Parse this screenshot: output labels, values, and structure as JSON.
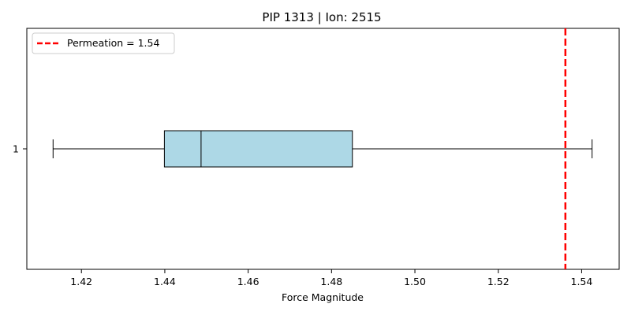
{
  "chart_data": {
    "type": "boxplot",
    "orientation": "horizontal",
    "title": "PIP 1313 | Ion: 2515",
    "xlabel": "Force Magnitude",
    "ylabel": "",
    "xlim": [
      1.4069,
      1.549
    ],
    "x_ticks": [
      1.42,
      1.44,
      1.46,
      1.48,
      1.5,
      1.52,
      1.54
    ],
    "x_tick_labels": [
      "1.42",
      "1.44",
      "1.46",
      "1.48",
      "1.50",
      "1.52",
      "1.54"
    ],
    "y_tick_labels": [
      "1"
    ],
    "box": {
      "category": "1",
      "whisker_low": 1.4132,
      "q1": 1.4399,
      "median": 1.4487,
      "q3": 1.485,
      "whisker_high": 1.5425,
      "fill_color": "#add8e6",
      "edge_color": "#000000"
    },
    "reference_line": {
      "label": "Permeation = 1.54",
      "value": 1.5361,
      "color": "#ff0000",
      "style": "dashed"
    },
    "legend": {
      "position": "top-left"
    },
    "grid": false
  }
}
